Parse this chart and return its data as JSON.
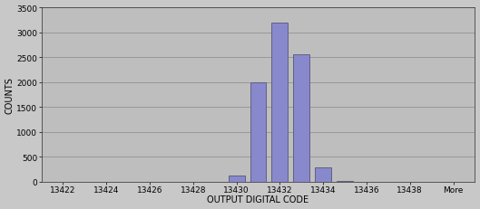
{
  "bar_x": [
    8,
    9,
    10,
    11,
    12,
    13
  ],
  "bar_vals": [
    120,
    2000,
    3200,
    2550,
    280,
    20
  ],
  "bar_color": "#8888cc",
  "bar_edge_color": "#555577",
  "bar_width": 0.75,
  "xlabel": "OUTPUT DIGITAL CODE",
  "ylabel": "COUNTS",
  "ylim": [
    0,
    3500
  ],
  "xlim": [
    -1,
    19
  ],
  "yticks": [
    0,
    500,
    1000,
    1500,
    2000,
    2500,
    3000,
    3500
  ],
  "xtick_pos": [
    0,
    2,
    4,
    6,
    8,
    10,
    12,
    14,
    16,
    18
  ],
  "xtick_lbl": [
    "13422",
    "13424",
    "13426",
    "13428",
    "13430",
    "13432",
    "13434",
    "13436",
    "13438",
    "More"
  ],
  "figure_bg": "#c8c8c8",
  "plot_bg": "#bebebe",
  "grid_color": "#888888",
  "xlabel_fontsize": 7,
  "ylabel_fontsize": 7,
  "tick_fontsize": 6.5,
  "figsize": [
    5.29,
    2.32
  ],
  "dpi": 100
}
